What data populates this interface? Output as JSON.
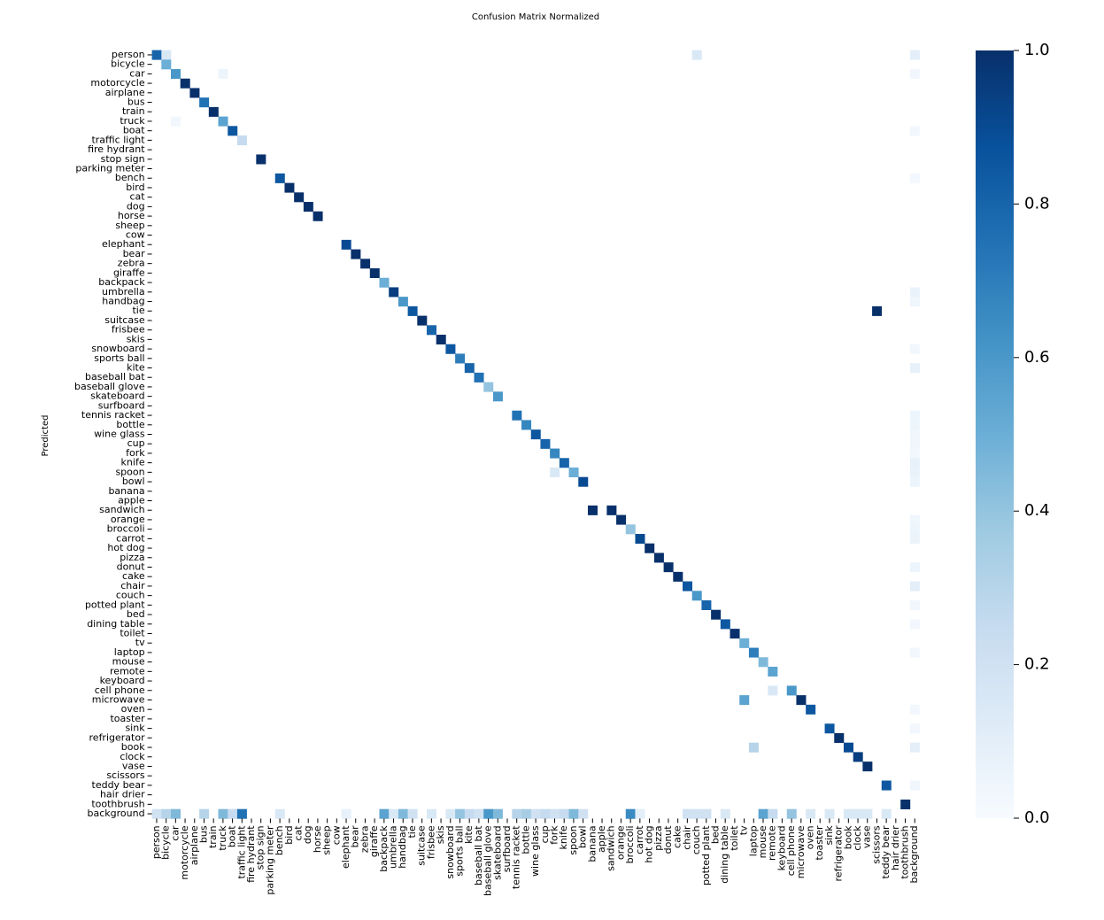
{
  "chart_data": {
    "type": "heatmap",
    "title": "Confusion Matrix Normalized",
    "y_label": "Predicted",
    "categories": [
      "person",
      "bicycle",
      "car",
      "motorcycle",
      "airplane",
      "bus",
      "train",
      "truck",
      "boat",
      "traffic light",
      "fire hydrant",
      "stop sign",
      "parking meter",
      "bench",
      "bird",
      "cat",
      "dog",
      "horse",
      "sheep",
      "cow",
      "elephant",
      "bear",
      "zebra",
      "giraffe",
      "backpack",
      "umbrella",
      "handbag",
      "tie",
      "suitcase",
      "frisbee",
      "skis",
      "snowboard",
      "sports ball",
      "kite",
      "baseball bat",
      "baseball glove",
      "skateboard",
      "surfboard",
      "tennis racket",
      "bottle",
      "wine glass",
      "cup",
      "fork",
      "knife",
      "spoon",
      "bowl",
      "banana",
      "apple",
      "sandwich",
      "orange",
      "broccoli",
      "carrot",
      "hot dog",
      "pizza",
      "donut",
      "cake",
      "chair",
      "couch",
      "potted plant",
      "bed",
      "dining table",
      "toilet",
      "tv",
      "laptop",
      "mouse",
      "remote",
      "keyboard",
      "cell phone",
      "microwave",
      "oven",
      "toaster",
      "sink",
      "refrigerator",
      "book",
      "clock",
      "vase",
      "scissors",
      "teddy bear",
      "hair drier",
      "toothbrush",
      "background"
    ],
    "cells": [
      {
        "x": "person",
        "y": "person",
        "value": 0.8
      },
      {
        "x": "bicycle",
        "y": "person",
        "value": 0.15
      },
      {
        "x": "couch",
        "y": "person",
        "value": 0.15
      },
      {
        "x": "background",
        "y": "person",
        "value": 0.1
      },
      {
        "x": "bicycle",
        "y": "bicycle",
        "value": 0.5
      },
      {
        "x": "car",
        "y": "car",
        "value": 0.6
      },
      {
        "x": "truck",
        "y": "car",
        "value": 0.05
      },
      {
        "x": "background",
        "y": "car",
        "value": 0.03
      },
      {
        "x": "motorcycle",
        "y": "motorcycle",
        "value": 1.0
      },
      {
        "x": "airplane",
        "y": "airplane",
        "value": 1.0
      },
      {
        "x": "bus",
        "y": "bus",
        "value": 0.75
      },
      {
        "x": "train",
        "y": "train",
        "value": 1.0
      },
      {
        "x": "truck",
        "y": "truck",
        "value": 0.55
      },
      {
        "x": "car",
        "y": "truck",
        "value": 0.03
      },
      {
        "x": "boat",
        "y": "boat",
        "value": 0.85
      },
      {
        "x": "background",
        "y": "boat",
        "value": 0.03
      },
      {
        "x": "traffic light",
        "y": "traffic light",
        "value": 0.25
      },
      {
        "x": "stop sign",
        "y": "stop sign",
        "value": 1.0
      },
      {
        "x": "bench",
        "y": "bench",
        "value": 0.85
      },
      {
        "x": "background",
        "y": "bench",
        "value": 0.02
      },
      {
        "x": "bird",
        "y": "bird",
        "value": 1.0
      },
      {
        "x": "cat",
        "y": "cat",
        "value": 1.0
      },
      {
        "x": "dog",
        "y": "dog",
        "value": 1.0
      },
      {
        "x": "horse",
        "y": "horse",
        "value": 1.0
      },
      {
        "x": "elephant",
        "y": "elephant",
        "value": 0.9
      },
      {
        "x": "bear",
        "y": "bear",
        "value": 1.0
      },
      {
        "x": "zebra",
        "y": "zebra",
        "value": 1.0
      },
      {
        "x": "giraffe",
        "y": "giraffe",
        "value": 1.0
      },
      {
        "x": "backpack",
        "y": "backpack",
        "value": 0.5
      },
      {
        "x": "umbrella",
        "y": "umbrella",
        "value": 0.95
      },
      {
        "x": "background",
        "y": "umbrella",
        "value": 0.07
      },
      {
        "x": "handbag",
        "y": "handbag",
        "value": 0.6
      },
      {
        "x": "background",
        "y": "handbag",
        "value": 0.04
      },
      {
        "x": "tie",
        "y": "tie",
        "value": 0.85
      },
      {
        "x": "scissors",
        "y": "tie",
        "value": 1.0
      },
      {
        "x": "suitcase",
        "y": "suitcase",
        "value": 1.0
      },
      {
        "x": "frisbee",
        "y": "frisbee",
        "value": 0.8
      },
      {
        "x": "skis",
        "y": "skis",
        "value": 1.0
      },
      {
        "x": "snowboard",
        "y": "snowboard",
        "value": 0.85
      },
      {
        "x": "background",
        "y": "snowboard",
        "value": 0.03
      },
      {
        "x": "sports ball",
        "y": "sports ball",
        "value": 0.7
      },
      {
        "x": "kite",
        "y": "kite",
        "value": 0.8
      },
      {
        "x": "background",
        "y": "kite",
        "value": 0.08
      },
      {
        "x": "baseball bat",
        "y": "baseball bat",
        "value": 0.75
      },
      {
        "x": "baseball glove",
        "y": "baseball glove",
        "value": 0.4
      },
      {
        "x": "skateboard",
        "y": "skateboard",
        "value": 0.6
      },
      {
        "x": "tennis racket",
        "y": "tennis racket",
        "value": 0.75
      },
      {
        "x": "background",
        "y": "tennis racket",
        "value": 0.05
      },
      {
        "x": "bottle",
        "y": "bottle",
        "value": 0.67
      },
      {
        "x": "background",
        "y": "bottle",
        "value": 0.05
      },
      {
        "x": "wine glass",
        "y": "wine glass",
        "value": 0.85
      },
      {
        "x": "background",
        "y": "wine glass",
        "value": 0.04
      },
      {
        "x": "cup",
        "y": "cup",
        "value": 0.8
      },
      {
        "x": "background",
        "y": "cup",
        "value": 0.04
      },
      {
        "x": "fork",
        "y": "fork",
        "value": 0.67
      },
      {
        "x": "background",
        "y": "fork",
        "value": 0.03
      },
      {
        "x": "knife",
        "y": "knife",
        "value": 0.8
      },
      {
        "x": "background",
        "y": "knife",
        "value": 0.08
      },
      {
        "x": "spoon",
        "y": "spoon",
        "value": 0.5
      },
      {
        "x": "fork",
        "y": "spoon",
        "value": 0.15
      },
      {
        "x": "background",
        "y": "spoon",
        "value": 0.07
      },
      {
        "x": "bowl",
        "y": "bowl",
        "value": 0.9
      },
      {
        "x": "background",
        "y": "bowl",
        "value": 0.05
      },
      {
        "x": "banana",
        "y": "sandwich",
        "value": 1.0
      },
      {
        "x": "sandwich",
        "y": "sandwich",
        "value": 1.0
      },
      {
        "x": "orange",
        "y": "orange",
        "value": 1.0
      },
      {
        "x": "background",
        "y": "orange",
        "value": 0.04
      },
      {
        "x": "broccoli",
        "y": "broccoli",
        "value": 0.4
      },
      {
        "x": "background",
        "y": "broccoli",
        "value": 0.05
      },
      {
        "x": "carrot",
        "y": "carrot",
        "value": 0.9
      },
      {
        "x": "background",
        "y": "carrot",
        "value": 0.06
      },
      {
        "x": "hot dog",
        "y": "hot dog",
        "value": 1.0
      },
      {
        "x": "pizza",
        "y": "pizza",
        "value": 1.0
      },
      {
        "x": "donut",
        "y": "donut",
        "value": 1.0
      },
      {
        "x": "background",
        "y": "donut",
        "value": 0.05
      },
      {
        "x": "cake",
        "y": "cake",
        "value": 1.0
      },
      {
        "x": "chair",
        "y": "chair",
        "value": 0.85
      },
      {
        "x": "background",
        "y": "chair",
        "value": 0.1
      },
      {
        "x": "couch",
        "y": "couch",
        "value": 0.6
      },
      {
        "x": "potted plant",
        "y": "potted plant",
        "value": 0.8
      },
      {
        "x": "background",
        "y": "potted plant",
        "value": 0.04
      },
      {
        "x": "bed",
        "y": "bed",
        "value": 1.0
      },
      {
        "x": "dining table",
        "y": "dining table",
        "value": 0.85
      },
      {
        "x": "background",
        "y": "dining table",
        "value": 0.03
      },
      {
        "x": "toilet",
        "y": "toilet",
        "value": 1.0
      },
      {
        "x": "tv",
        "y": "tv",
        "value": 0.5
      },
      {
        "x": "laptop",
        "y": "laptop",
        "value": 0.7
      },
      {
        "x": "background",
        "y": "laptop",
        "value": 0.03
      },
      {
        "x": "mouse",
        "y": "mouse",
        "value": 0.45
      },
      {
        "x": "remote",
        "y": "remote",
        "value": 0.55
      },
      {
        "x": "cell phone",
        "y": "cell phone",
        "value": 0.6
      },
      {
        "x": "remote",
        "y": "cell phone",
        "value": 0.15
      },
      {
        "x": "microwave",
        "y": "microwave",
        "value": 1.0
      },
      {
        "x": "tv",
        "y": "microwave",
        "value": 0.55
      },
      {
        "x": "oven",
        "y": "oven",
        "value": 0.85
      },
      {
        "x": "background",
        "y": "oven",
        "value": 0.03
      },
      {
        "x": "sink",
        "y": "sink",
        "value": 0.85
      },
      {
        "x": "background",
        "y": "sink",
        "value": 0.03
      },
      {
        "x": "refrigerator",
        "y": "refrigerator",
        "value": 1.0
      },
      {
        "x": "book",
        "y": "book",
        "value": 0.9
      },
      {
        "x": "laptop",
        "y": "book",
        "value": 0.3
      },
      {
        "x": "background",
        "y": "book",
        "value": 0.1
      },
      {
        "x": "clock",
        "y": "clock",
        "value": 0.95
      },
      {
        "x": "vase",
        "y": "vase",
        "value": 1.0
      },
      {
        "x": "teddy bear",
        "y": "teddy bear",
        "value": 0.85
      },
      {
        "x": "background",
        "y": "teddy bear",
        "value": 0.04
      },
      {
        "x": "toothbrush",
        "y": "toothbrush",
        "value": 1.0
      },
      {
        "x": "person",
        "y": "background",
        "value": 0.2
      },
      {
        "x": "bicycle",
        "y": "background",
        "value": 0.3
      },
      {
        "x": "car",
        "y": "background",
        "value": 0.45
      },
      {
        "x": "bus",
        "y": "background",
        "value": 0.3
      },
      {
        "x": "truck",
        "y": "background",
        "value": 0.45
      },
      {
        "x": "boat",
        "y": "background",
        "value": 0.25
      },
      {
        "x": "traffic light",
        "y": "background",
        "value": 0.75
      },
      {
        "x": "bench",
        "y": "background",
        "value": 0.15
      },
      {
        "x": "elephant",
        "y": "background",
        "value": 0.08
      },
      {
        "x": "backpack",
        "y": "background",
        "value": 0.55
      },
      {
        "x": "umbrella",
        "y": "background",
        "value": 0.15
      },
      {
        "x": "handbag",
        "y": "background",
        "value": 0.45
      },
      {
        "x": "tie",
        "y": "background",
        "value": 0.2
      },
      {
        "x": "frisbee",
        "y": "background",
        "value": 0.15
      },
      {
        "x": "snowboard",
        "y": "background",
        "value": 0.15
      },
      {
        "x": "sports ball",
        "y": "background",
        "value": 0.4
      },
      {
        "x": "kite",
        "y": "background",
        "value": 0.25
      },
      {
        "x": "baseball bat",
        "y": "background",
        "value": 0.2
      },
      {
        "x": "baseball glove",
        "y": "background",
        "value": 0.6
      },
      {
        "x": "skateboard",
        "y": "background",
        "value": 0.45
      },
      {
        "x": "tennis racket",
        "y": "background",
        "value": 0.3
      },
      {
        "x": "bottle",
        "y": "background",
        "value": 0.35
      },
      {
        "x": "wine glass",
        "y": "background",
        "value": 0.2
      },
      {
        "x": "cup",
        "y": "background",
        "value": 0.25
      },
      {
        "x": "fork",
        "y": "background",
        "value": 0.2
      },
      {
        "x": "knife",
        "y": "background",
        "value": 0.25
      },
      {
        "x": "spoon",
        "y": "background",
        "value": 0.45
      },
      {
        "x": "bowl",
        "y": "background",
        "value": 0.2
      },
      {
        "x": "broccoli",
        "y": "background",
        "value": 0.65
      },
      {
        "x": "carrot",
        "y": "background",
        "value": 0.1
      },
      {
        "x": "chair",
        "y": "background",
        "value": 0.2
      },
      {
        "x": "couch",
        "y": "background",
        "value": 0.2
      },
      {
        "x": "potted plant",
        "y": "background",
        "value": 0.2
      },
      {
        "x": "dining table",
        "y": "background",
        "value": 0.15
      },
      {
        "x": "mouse",
        "y": "background",
        "value": 0.55
      },
      {
        "x": "remote",
        "y": "background",
        "value": 0.25
      },
      {
        "x": "cell phone",
        "y": "background",
        "value": 0.4
      },
      {
        "x": "oven",
        "y": "background",
        "value": 0.15
      },
      {
        "x": "sink",
        "y": "background",
        "value": 0.15
      },
      {
        "x": "book",
        "y": "background",
        "value": 0.15
      },
      {
        "x": "clock",
        "y": "background",
        "value": 0.15
      },
      {
        "x": "vase",
        "y": "background",
        "value": 0.15
      },
      {
        "x": "teddy bear",
        "y": "background",
        "value": 0.15
      }
    ],
    "colorscale": [
      "#f7fbff",
      "#deebf7",
      "#c6dbef",
      "#9ecae1",
      "#6baed6",
      "#4292c6",
      "#2171b5",
      "#08519c",
      "#08306b"
    ],
    "clim": [
      0,
      1
    ],
    "cticks": [
      {
        "value": 0,
        "label": "0.0"
      },
      {
        "value": 0.2,
        "label": "0.2"
      },
      {
        "value": 0.4,
        "label": "0.4"
      },
      {
        "value": 0.6,
        "label": "0.6"
      },
      {
        "value": 0.8,
        "label": "0.8"
      },
      {
        "value": 1,
        "label": "1.0"
      }
    ]
  }
}
